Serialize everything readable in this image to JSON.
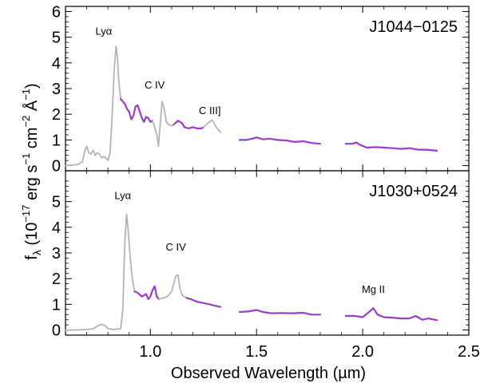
{
  "chart_data": {
    "type": "line",
    "xlabel": "Observed Wavelength (µm)",
    "ylabel_parts": {
      "f": "f",
      "lambda": "λ",
      "open": " (10",
      "e17": "−17",
      "erg": " erg s",
      "e1": "−1",
      "cm": " cm",
      "e2": "−2",
      "ang": " Å",
      "e1b": "−1",
      "close": ")"
    },
    "xlim": [
      0.6,
      2.5
    ],
    "x_ticks": [
      "1.0",
      "1.5",
      "2.0",
      "2.5"
    ],
    "x_tick_values": [
      1.0,
      1.5,
      2.0,
      2.5
    ],
    "colors": {
      "raw": "#b4b4b4",
      "model": "#9a3ccc",
      "axis": "#000000"
    },
    "panels": [
      {
        "name": "J1044−0125",
        "ylim": [
          -0.2,
          6.2
        ],
        "y_ticks": [
          "0",
          "1",
          "2",
          "3",
          "4",
          "5",
          "6"
        ],
        "y_tick_values": [
          0,
          1,
          2,
          3,
          4,
          5,
          6
        ],
        "annotations": [
          {
            "text": "Lyα",
            "x": 0.78,
            "y": 5.1
          },
          {
            "text": "C IV",
            "x": 1.02,
            "y": 3.0
          },
          {
            "text": "C III]",
            "x": 1.28,
            "y": 2.0
          }
        ],
        "series": [
          {
            "role": "raw",
            "points": [
              [
                0.6,
                0.0
              ],
              [
                0.63,
                0.02
              ],
              [
                0.66,
                0.05
              ],
              [
                0.68,
                0.15
              ],
              [
                0.69,
                0.55
              ],
              [
                0.7,
                0.75
              ],
              [
                0.71,
                0.5
              ],
              [
                0.72,
                0.45
              ],
              [
                0.73,
                0.6
              ],
              [
                0.74,
                0.4
              ],
              [
                0.75,
                0.5
              ],
              [
                0.76,
                0.45
              ],
              [
                0.77,
                0.3
              ],
              [
                0.78,
                0.35
              ],
              [
                0.79,
                0.3
              ],
              [
                0.8,
                0.2
              ],
              [
                0.81,
                0.5
              ],
              [
                0.82,
                2.0
              ],
              [
                0.83,
                3.8
              ],
              [
                0.838,
                4.65
              ],
              [
                0.845,
                4.2
              ],
              [
                0.85,
                3.4
              ],
              [
                0.86,
                2.6
              ]
            ]
          },
          {
            "role": "model",
            "points": [
              [
                0.86,
                2.6
              ],
              [
                0.88,
                2.4
              ],
              [
                0.89,
                2.2
              ],
              [
                0.9,
                2.1
              ],
              [
                0.91,
                1.8
              ],
              [
                0.92,
                1.95
              ],
              [
                0.93,
                2.3
              ],
              [
                0.94,
                2.35
              ],
              [
                0.95,
                2.1
              ],
              [
                0.96,
                1.85
              ],
              [
                0.97,
                1.7
              ],
              [
                0.98,
                1.9
              ],
              [
                0.99,
                1.85
              ],
              [
                1.0,
                1.7
              ],
              [
                1.01,
                1.75
              ]
            ]
          },
          {
            "role": "raw",
            "points": [
              [
                1.01,
                1.75
              ],
              [
                1.02,
                1.5
              ],
              [
                1.03,
                1.2
              ],
              [
                1.038,
                0.75
              ],
              [
                1.045,
                1.5
              ],
              [
                1.055,
                2.5
              ],
              [
                1.065,
                2.2
              ],
              [
                1.075,
                1.7
              ],
              [
                1.085,
                1.6
              ],
              [
                1.1,
                1.55
              ],
              [
                1.11,
                1.6
              ]
            ]
          },
          {
            "role": "model",
            "points": [
              [
                1.11,
                1.6
              ],
              [
                1.13,
                1.75
              ],
              [
                1.15,
                1.65
              ],
              [
                1.16,
                1.5
              ],
              [
                1.18,
                1.45
              ],
              [
                1.2,
                1.5
              ],
              [
                1.22,
                1.45
              ],
              [
                1.24,
                1.45
              ],
              [
                1.25,
                1.5
              ]
            ]
          },
          {
            "role": "raw",
            "points": [
              [
                1.25,
                1.5
              ],
              [
                1.27,
                1.65
              ],
              [
                1.29,
                1.78
              ],
              [
                1.3,
                1.65
              ],
              [
                1.31,
                1.5
              ],
              [
                1.33,
                1.3
              ]
            ]
          },
          {
            "role": "model",
            "points": [
              [
                1.42,
                1.0
              ],
              [
                1.45,
                1.0
              ],
              [
                1.48,
                1.05
              ],
              [
                1.5,
                1.1
              ],
              [
                1.53,
                1.02
              ],
              [
                1.56,
                1.05
              ],
              [
                1.6,
                1.0
              ],
              [
                1.64,
                0.98
              ],
              [
                1.68,
                0.92
              ],
              [
                1.72,
                0.95
              ],
              [
                1.76,
                0.88
              ],
              [
                1.8,
                0.85
              ]
            ]
          },
          {
            "role": "model",
            "points": [
              [
                1.92,
                0.85
              ],
              [
                1.95,
                0.85
              ],
              [
                1.97,
                0.9
              ],
              [
                1.99,
                0.8
              ],
              [
                2.02,
                0.7
              ],
              [
                2.06,
                0.72
              ],
              [
                2.1,
                0.7
              ],
              [
                2.14,
                0.68
              ],
              [
                2.18,
                0.65
              ],
              [
                2.22,
                0.68
              ],
              [
                2.26,
                0.62
              ],
              [
                2.3,
                0.62
              ],
              [
                2.35,
                0.58
              ]
            ]
          }
        ]
      },
      {
        "name": "J1030+0524",
        "ylim": [
          -0.2,
          6.2
        ],
        "y_ticks": [
          "0",
          "1",
          "2",
          "3",
          "4",
          "5"
        ],
        "y_tick_values": [
          0,
          1,
          2,
          3,
          4,
          5
        ],
        "annotations": [
          {
            "text": "Lyα",
            "x": 0.87,
            "y": 5.1
          },
          {
            "text": "C IV",
            "x": 1.12,
            "y": 3.1
          },
          {
            "text": "Mg II",
            "x": 2.05,
            "y": 1.45
          }
        ],
        "series": [
          {
            "role": "raw",
            "points": [
              [
                0.6,
                0.0
              ],
              [
                0.65,
                0.0
              ],
              [
                0.7,
                0.02
              ],
              [
                0.73,
                0.05
              ],
              [
                0.75,
                0.15
              ],
              [
                0.77,
                0.22
              ],
              [
                0.79,
                0.15
              ],
              [
                0.8,
                0.05
              ],
              [
                0.83,
                0.02
              ],
              [
                0.86,
                0.05
              ],
              [
                0.87,
                0.8
              ],
              [
                0.88,
                3.5
              ],
              [
                0.888,
                4.5
              ],
              [
                0.895,
                3.9
              ],
              [
                0.905,
                2.8
              ],
              [
                0.915,
                2.0
              ],
              [
                0.925,
                1.5
              ]
            ]
          },
          {
            "role": "model",
            "points": [
              [
                0.925,
                1.5
              ],
              [
                0.94,
                1.45
              ],
              [
                0.96,
                1.3
              ],
              [
                0.98,
                1.4
              ],
              [
                0.99,
                1.2
              ],
              [
                1.0,
                1.3
              ],
              [
                1.01,
                1.55
              ],
              [
                1.02,
                1.7
              ],
              [
                1.03,
                1.3
              ],
              [
                1.04,
                1.2
              ]
            ]
          },
          {
            "role": "raw",
            "points": [
              [
                1.04,
                1.2
              ],
              [
                1.06,
                1.25
              ],
              [
                1.08,
                1.3
              ],
              [
                1.1,
                1.5
              ],
              [
                1.12,
                2.1
              ],
              [
                1.13,
                2.15
              ],
              [
                1.14,
                1.6
              ],
              [
                1.15,
                1.35
              ],
              [
                1.16,
                1.3
              ],
              [
                1.17,
                1.25
              ]
            ]
          },
          {
            "role": "model",
            "points": [
              [
                1.17,
                1.25
              ],
              [
                1.19,
                1.2
              ],
              [
                1.22,
                1.1
              ],
              [
                1.25,
                1.05
              ],
              [
                1.28,
                1.0
              ],
              [
                1.3,
                0.95
              ],
              [
                1.33,
                0.9
              ]
            ]
          },
          {
            "role": "model",
            "points": [
              [
                1.42,
                0.7
              ],
              [
                1.46,
                0.72
              ],
              [
                1.5,
                0.78
              ],
              [
                1.53,
                0.7
              ],
              [
                1.57,
                0.65
              ],
              [
                1.62,
                0.66
              ],
              [
                1.67,
                0.65
              ],
              [
                1.72,
                0.67
              ],
              [
                1.76,
                0.6
              ],
              [
                1.8,
                0.6
              ]
            ]
          },
          {
            "role": "model",
            "points": [
              [
                1.92,
                0.55
              ],
              [
                1.96,
                0.55
              ],
              [
                2.0,
                0.5
              ],
              [
                2.03,
                0.7
              ],
              [
                2.05,
                0.85
              ],
              [
                2.07,
                0.6
              ],
              [
                2.1,
                0.5
              ],
              [
                2.14,
                0.48
              ],
              [
                2.18,
                0.45
              ],
              [
                2.22,
                0.45
              ],
              [
                2.25,
                0.55
              ],
              [
                2.28,
                0.4
              ],
              [
                2.31,
                0.45
              ],
              [
                2.35,
                0.38
              ]
            ]
          }
        ]
      }
    ]
  }
}
